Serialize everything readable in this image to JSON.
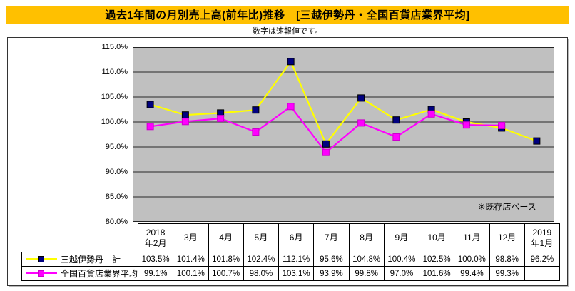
{
  "title": "過去1年間の月別売上高(前年比)推移　[三越伊勢丹・全国百貨店業界平均]",
  "subtitle": "数字は速報値です。",
  "annotation": "※既存店ベース",
  "colors": {
    "title_bg": "#FFC000",
    "plot_bg": "#C0C0C0",
    "gridline": "#5a5a5a",
    "plot_border": "#000000",
    "isetan_line": "#FFFF00",
    "isetan_marker": "#000080",
    "industry_line": "#FF00FF",
    "industry_marker": "#FF00FF"
  },
  "chart_data": {
    "type": "line",
    "categories": [
      "2018年2月",
      "3月",
      "4月",
      "5月",
      "6月",
      "7月",
      "8月",
      "9月",
      "10月",
      "11月",
      "12月",
      "2019年1月"
    ],
    "categories_display": [
      "2018\n年2月",
      "3月",
      "4月",
      "5月",
      "6月",
      "7月",
      "8月",
      "9月",
      "10月",
      "11月",
      "12月",
      "2019\n年1月"
    ],
    "series": [
      {
        "name": "三越伊勢丹　計",
        "line_color": "#FFFF00",
        "marker_color": "#000080",
        "marker_border": "#000000",
        "values": [
          103.5,
          101.4,
          101.8,
          102.4,
          112.1,
          95.6,
          104.8,
          100.4,
          102.5,
          100.0,
          98.8,
          96.2
        ]
      },
      {
        "name": "全国百貨店業界平均",
        "line_color": "#FF00FF",
        "marker_color": "#FF00FF",
        "marker_border": "#CC00CC",
        "values": [
          99.1,
          100.1,
          100.7,
          98.0,
          103.1,
          93.9,
          99.8,
          97.0,
          101.6,
          99.4,
          99.3,
          null
        ]
      }
    ],
    "title": "過去1年間の月別売上高(前年比)推移　[三越伊勢丹・全国百貨店業界平均]",
    "xlabel": "",
    "ylabel": "",
    "ylim": [
      80,
      115
    ],
    "ytick_step": 5,
    "ytick_format": "0.0%",
    "grid": "horizontal",
    "legend_position": "table-left",
    "annotation": "※既存店ベース"
  }
}
